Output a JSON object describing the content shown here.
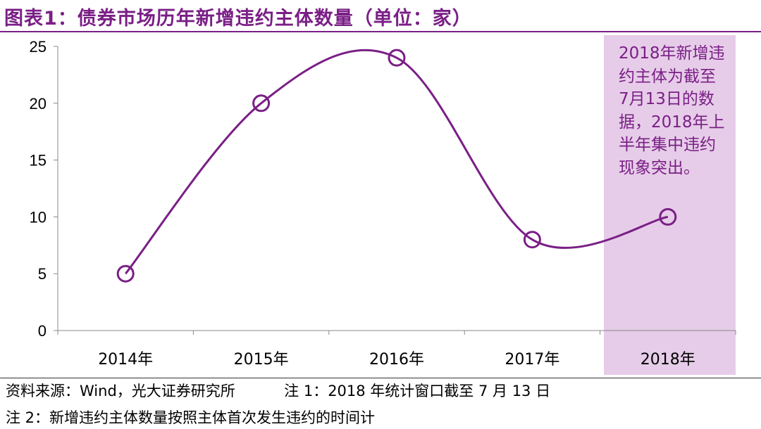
{
  "title": "图表1：债券市场历年新增违约主体数量（单位：家）",
  "chart_data": {
    "type": "line",
    "categories": [
      "2014年",
      "2015年",
      "2016年",
      "2017年",
      "2018年"
    ],
    "values": [
      5,
      20,
      24,
      8,
      10
    ],
    "ylim": [
      0,
      25
    ],
    "yticks": [
      "0",
      "5",
      "10",
      "15",
      "20",
      "25"
    ],
    "smooth": true,
    "marker": "open-circle",
    "line_color": "#7a1f86",
    "highlight_category": "2018年",
    "highlight_color": "#e6cce8",
    "annotation": "2018年新增违约主体为截至7月13日的数据，2018年上半年集中违约现象突出。"
  },
  "footer": {
    "source": "资料来源：Wind，光大证券研究所",
    "note1": "注 1：2018 年统计窗口截至 7 月 13 日",
    "note2": "注 2：新增违约主体数量按照主体首次发生违约的时间计"
  }
}
